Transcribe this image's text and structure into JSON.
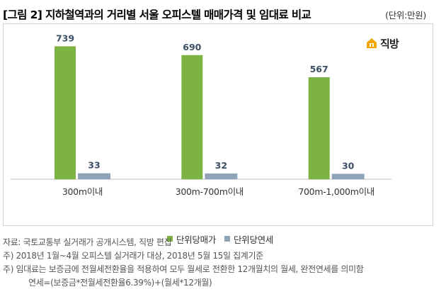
{
  "figure": {
    "title": "[그림 2] 지하철역과의 거리별 서울 오피스텔 매매가격 및 임대료 비교",
    "unit": "(단위:만원)",
    "logo_text": "직방"
  },
  "colors": {
    "sale": "#7cb342",
    "rent": "#8fa2b8",
    "axis": "#bfbfbf",
    "value_label": "#3d4f66",
    "logo": "#f0a500"
  },
  "chart_data": {
    "type": "bar",
    "title": "[그림 2] 지하철역과의 거리별 서울 오피스텔 매매가격 및 임대료 비교",
    "unit": "(단위:만원)",
    "categories": [
      "300m이내",
      "300m-700m이내",
      "700m-1,000m이내"
    ],
    "series": [
      {
        "name": "단위당매가",
        "values": [
          739,
          690,
          567
        ],
        "labels": [
          "739",
          "690",
          "567"
        ]
      },
      {
        "name": "단위당연세",
        "values": [
          33,
          32,
          30
        ],
        "labels": [
          "33",
          "32",
          "30"
        ]
      }
    ],
    "ylim": [
      0,
      760
    ],
    "grid": false,
    "legend_position": "bottom-center"
  },
  "notes": [
    "자료: 국토교통부 실거래가 공개시스템, 직방 편집",
    "주) 2018년 1월~4월 오피스텔 실거래가 대상, 2018년 5월 15일 집계기준",
    "주) 임대료는 보증금에 전월세전환율을 적용하여 모두 월세로 전환한 12개월치의 월세, 완전연세를 의미함",
    "연세=(보증금*전월세전환율6.39%)+(월세*12개월)"
  ]
}
